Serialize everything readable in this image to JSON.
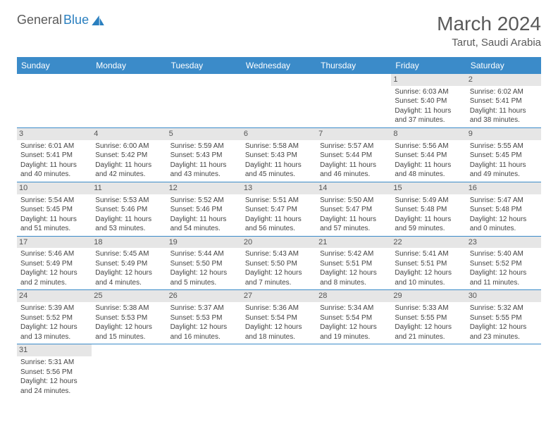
{
  "brand": {
    "part1": "General",
    "part2": "Blue"
  },
  "title": {
    "month": "March 2024",
    "location": "Tarut, Saudi Arabia"
  },
  "colors": {
    "header_bg": "#3b8bc9",
    "header_text": "#ffffff",
    "daynum_bg": "#e6e6e6",
    "border": "#3b8bc9",
    "text": "#444444",
    "brand_gray": "#5a5a5a",
    "brand_blue": "#2a7fbf"
  },
  "weekdays": [
    "Sunday",
    "Monday",
    "Tuesday",
    "Wednesday",
    "Thursday",
    "Friday",
    "Saturday"
  ],
  "weeks": [
    [
      null,
      null,
      null,
      null,
      null,
      {
        "n": "1",
        "sunrise": "Sunrise: 6:03 AM",
        "sunset": "Sunset: 5:40 PM",
        "day1": "Daylight: 11 hours",
        "day2": "and 37 minutes."
      },
      {
        "n": "2",
        "sunrise": "Sunrise: 6:02 AM",
        "sunset": "Sunset: 5:41 PM",
        "day1": "Daylight: 11 hours",
        "day2": "and 38 minutes."
      }
    ],
    [
      {
        "n": "3",
        "sunrise": "Sunrise: 6:01 AM",
        "sunset": "Sunset: 5:41 PM",
        "day1": "Daylight: 11 hours",
        "day2": "and 40 minutes."
      },
      {
        "n": "4",
        "sunrise": "Sunrise: 6:00 AM",
        "sunset": "Sunset: 5:42 PM",
        "day1": "Daylight: 11 hours",
        "day2": "and 42 minutes."
      },
      {
        "n": "5",
        "sunrise": "Sunrise: 5:59 AM",
        "sunset": "Sunset: 5:43 PM",
        "day1": "Daylight: 11 hours",
        "day2": "and 43 minutes."
      },
      {
        "n": "6",
        "sunrise": "Sunrise: 5:58 AM",
        "sunset": "Sunset: 5:43 PM",
        "day1": "Daylight: 11 hours",
        "day2": "and 45 minutes."
      },
      {
        "n": "7",
        "sunrise": "Sunrise: 5:57 AM",
        "sunset": "Sunset: 5:44 PM",
        "day1": "Daylight: 11 hours",
        "day2": "and 46 minutes."
      },
      {
        "n": "8",
        "sunrise": "Sunrise: 5:56 AM",
        "sunset": "Sunset: 5:44 PM",
        "day1": "Daylight: 11 hours",
        "day2": "and 48 minutes."
      },
      {
        "n": "9",
        "sunrise": "Sunrise: 5:55 AM",
        "sunset": "Sunset: 5:45 PM",
        "day1": "Daylight: 11 hours",
        "day2": "and 49 minutes."
      }
    ],
    [
      {
        "n": "10",
        "sunrise": "Sunrise: 5:54 AM",
        "sunset": "Sunset: 5:45 PM",
        "day1": "Daylight: 11 hours",
        "day2": "and 51 minutes."
      },
      {
        "n": "11",
        "sunrise": "Sunrise: 5:53 AM",
        "sunset": "Sunset: 5:46 PM",
        "day1": "Daylight: 11 hours",
        "day2": "and 53 minutes."
      },
      {
        "n": "12",
        "sunrise": "Sunrise: 5:52 AM",
        "sunset": "Sunset: 5:46 PM",
        "day1": "Daylight: 11 hours",
        "day2": "and 54 minutes."
      },
      {
        "n": "13",
        "sunrise": "Sunrise: 5:51 AM",
        "sunset": "Sunset: 5:47 PM",
        "day1": "Daylight: 11 hours",
        "day2": "and 56 minutes."
      },
      {
        "n": "14",
        "sunrise": "Sunrise: 5:50 AM",
        "sunset": "Sunset: 5:47 PM",
        "day1": "Daylight: 11 hours",
        "day2": "and 57 minutes."
      },
      {
        "n": "15",
        "sunrise": "Sunrise: 5:49 AM",
        "sunset": "Sunset: 5:48 PM",
        "day1": "Daylight: 11 hours",
        "day2": "and 59 minutes."
      },
      {
        "n": "16",
        "sunrise": "Sunrise: 5:47 AM",
        "sunset": "Sunset: 5:48 PM",
        "day1": "Daylight: 12 hours",
        "day2": "and 0 minutes."
      }
    ],
    [
      {
        "n": "17",
        "sunrise": "Sunrise: 5:46 AM",
        "sunset": "Sunset: 5:49 PM",
        "day1": "Daylight: 12 hours",
        "day2": "and 2 minutes."
      },
      {
        "n": "18",
        "sunrise": "Sunrise: 5:45 AM",
        "sunset": "Sunset: 5:49 PM",
        "day1": "Daylight: 12 hours",
        "day2": "and 4 minutes."
      },
      {
        "n": "19",
        "sunrise": "Sunrise: 5:44 AM",
        "sunset": "Sunset: 5:50 PM",
        "day1": "Daylight: 12 hours",
        "day2": "and 5 minutes."
      },
      {
        "n": "20",
        "sunrise": "Sunrise: 5:43 AM",
        "sunset": "Sunset: 5:50 PM",
        "day1": "Daylight: 12 hours",
        "day2": "and 7 minutes."
      },
      {
        "n": "21",
        "sunrise": "Sunrise: 5:42 AM",
        "sunset": "Sunset: 5:51 PM",
        "day1": "Daylight: 12 hours",
        "day2": "and 8 minutes."
      },
      {
        "n": "22",
        "sunrise": "Sunrise: 5:41 AM",
        "sunset": "Sunset: 5:51 PM",
        "day1": "Daylight: 12 hours",
        "day2": "and 10 minutes."
      },
      {
        "n": "23",
        "sunrise": "Sunrise: 5:40 AM",
        "sunset": "Sunset: 5:52 PM",
        "day1": "Daylight: 12 hours",
        "day2": "and 11 minutes."
      }
    ],
    [
      {
        "n": "24",
        "sunrise": "Sunrise: 5:39 AM",
        "sunset": "Sunset: 5:52 PM",
        "day1": "Daylight: 12 hours",
        "day2": "and 13 minutes."
      },
      {
        "n": "25",
        "sunrise": "Sunrise: 5:38 AM",
        "sunset": "Sunset: 5:53 PM",
        "day1": "Daylight: 12 hours",
        "day2": "and 15 minutes."
      },
      {
        "n": "26",
        "sunrise": "Sunrise: 5:37 AM",
        "sunset": "Sunset: 5:53 PM",
        "day1": "Daylight: 12 hours",
        "day2": "and 16 minutes."
      },
      {
        "n": "27",
        "sunrise": "Sunrise: 5:36 AM",
        "sunset": "Sunset: 5:54 PM",
        "day1": "Daylight: 12 hours",
        "day2": "and 18 minutes."
      },
      {
        "n": "28",
        "sunrise": "Sunrise: 5:34 AM",
        "sunset": "Sunset: 5:54 PM",
        "day1": "Daylight: 12 hours",
        "day2": "and 19 minutes."
      },
      {
        "n": "29",
        "sunrise": "Sunrise: 5:33 AM",
        "sunset": "Sunset: 5:55 PM",
        "day1": "Daylight: 12 hours",
        "day2": "and 21 minutes."
      },
      {
        "n": "30",
        "sunrise": "Sunrise: 5:32 AM",
        "sunset": "Sunset: 5:55 PM",
        "day1": "Daylight: 12 hours",
        "day2": "and 23 minutes."
      }
    ],
    [
      {
        "n": "31",
        "sunrise": "Sunrise: 5:31 AM",
        "sunset": "Sunset: 5:56 PM",
        "day1": "Daylight: 12 hours",
        "day2": "and 24 minutes."
      },
      null,
      null,
      null,
      null,
      null,
      null
    ]
  ]
}
